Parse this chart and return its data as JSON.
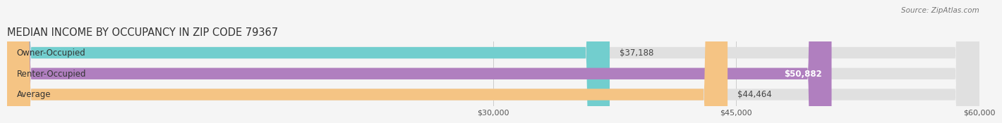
{
  "title": "MEDIAN INCOME BY OCCUPANCY IN ZIP CODE 79367",
  "source": "Source: ZipAtlas.com",
  "categories": [
    "Owner-Occupied",
    "Renter-Occupied",
    "Average"
  ],
  "values": [
    37188,
    50882,
    44464
  ],
  "labels": [
    "$37,188",
    "$50,882",
    "$44,464"
  ],
  "label_inside": [
    false,
    true,
    false
  ],
  "bar_colors": [
    "#72cece",
    "#b07fbf",
    "#f5c484"
  ],
  "bar_bg_color": "#e0e0e0",
  "xlim": [
    0,
    60000
  ],
  "xticks": [
    30000,
    45000,
    60000
  ],
  "xtick_labels": [
    "$30,000",
    "$45,000",
    "$60,000"
  ],
  "bar_height": 0.55,
  "title_fontsize": 10.5,
  "label_fontsize": 8.5,
  "tick_fontsize": 8,
  "source_fontsize": 7.5,
  "background_color": "#f5f5f5"
}
